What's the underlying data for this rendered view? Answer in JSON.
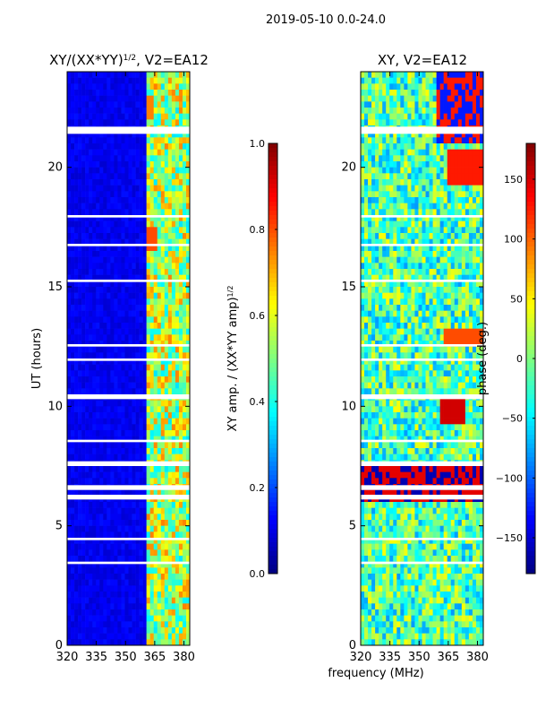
{
  "suptitle": "2019-05-10 0.0-24.0",
  "colormap": [
    "#00007f",
    "#0000ff",
    "#007fff",
    "#00ffff",
    "#7fff7f",
    "#ffff00",
    "#ff7f00",
    "#ff0000",
    "#7f0000"
  ],
  "chart_data": [
    {
      "type": "heatmap",
      "title_main": "XY/(XX*YY)",
      "title_sup": "1/2",
      "title_suffix": ", V2=EA12",
      "xlabel": "",
      "ylabel": "UT (hours)",
      "xlim": [
        320,
        383
      ],
      "ylim": [
        0,
        24
      ],
      "x_ticks": [
        320,
        335,
        350,
        365,
        380
      ],
      "y_ticks": [
        0,
        5,
        10,
        15,
        20
      ],
      "colorbar": {
        "label_main": "XY amp. / (XX*YY amp)",
        "label_sup": "1/2",
        "range": [
          0.0,
          1.0
        ],
        "ticks": [
          "0.0",
          "0.2",
          "0.4",
          "0.6",
          "0.8",
          "1.0"
        ],
        "tick_values": [
          0,
          0.2,
          0.4,
          0.6,
          0.8,
          1.0
        ]
      }
    },
    {
      "type": "heatmap",
      "title_main": "XY, V2=EA12",
      "xlabel": "frequency (MHz)",
      "ylabel": "",
      "xlim": [
        320,
        383
      ],
      "ylim": [
        0,
        24
      ],
      "x_ticks": [
        320,
        335,
        350,
        365,
        380
      ],
      "y_ticks": [
        0,
        5,
        10,
        15,
        20
      ],
      "colorbar": {
        "label_main": "phase (deg.)",
        "range": [
          -180,
          180
        ],
        "ticks": [
          "−150",
          "−100",
          "−50",
          "0",
          "50",
          "100",
          "150"
        ],
        "tick_values": [
          -150,
          -100,
          -50,
          0,
          50,
          100,
          150
        ]
      }
    }
  ],
  "flagged_gaps_ut_hours": [
    [
      21.4,
      21.7
    ],
    [
      17.9,
      18.0
    ],
    [
      16.7,
      16.8
    ],
    [
      15.2,
      15.3
    ],
    [
      12.5,
      12.6
    ],
    [
      11.9,
      12.0
    ],
    [
      10.3,
      10.5
    ],
    [
      8.5,
      8.6
    ],
    [
      7.5,
      7.7
    ],
    [
      6.5,
      6.7
    ],
    [
      6.1,
      6.3
    ],
    [
      4.4,
      4.5
    ],
    [
      3.4,
      3.5
    ]
  ]
}
